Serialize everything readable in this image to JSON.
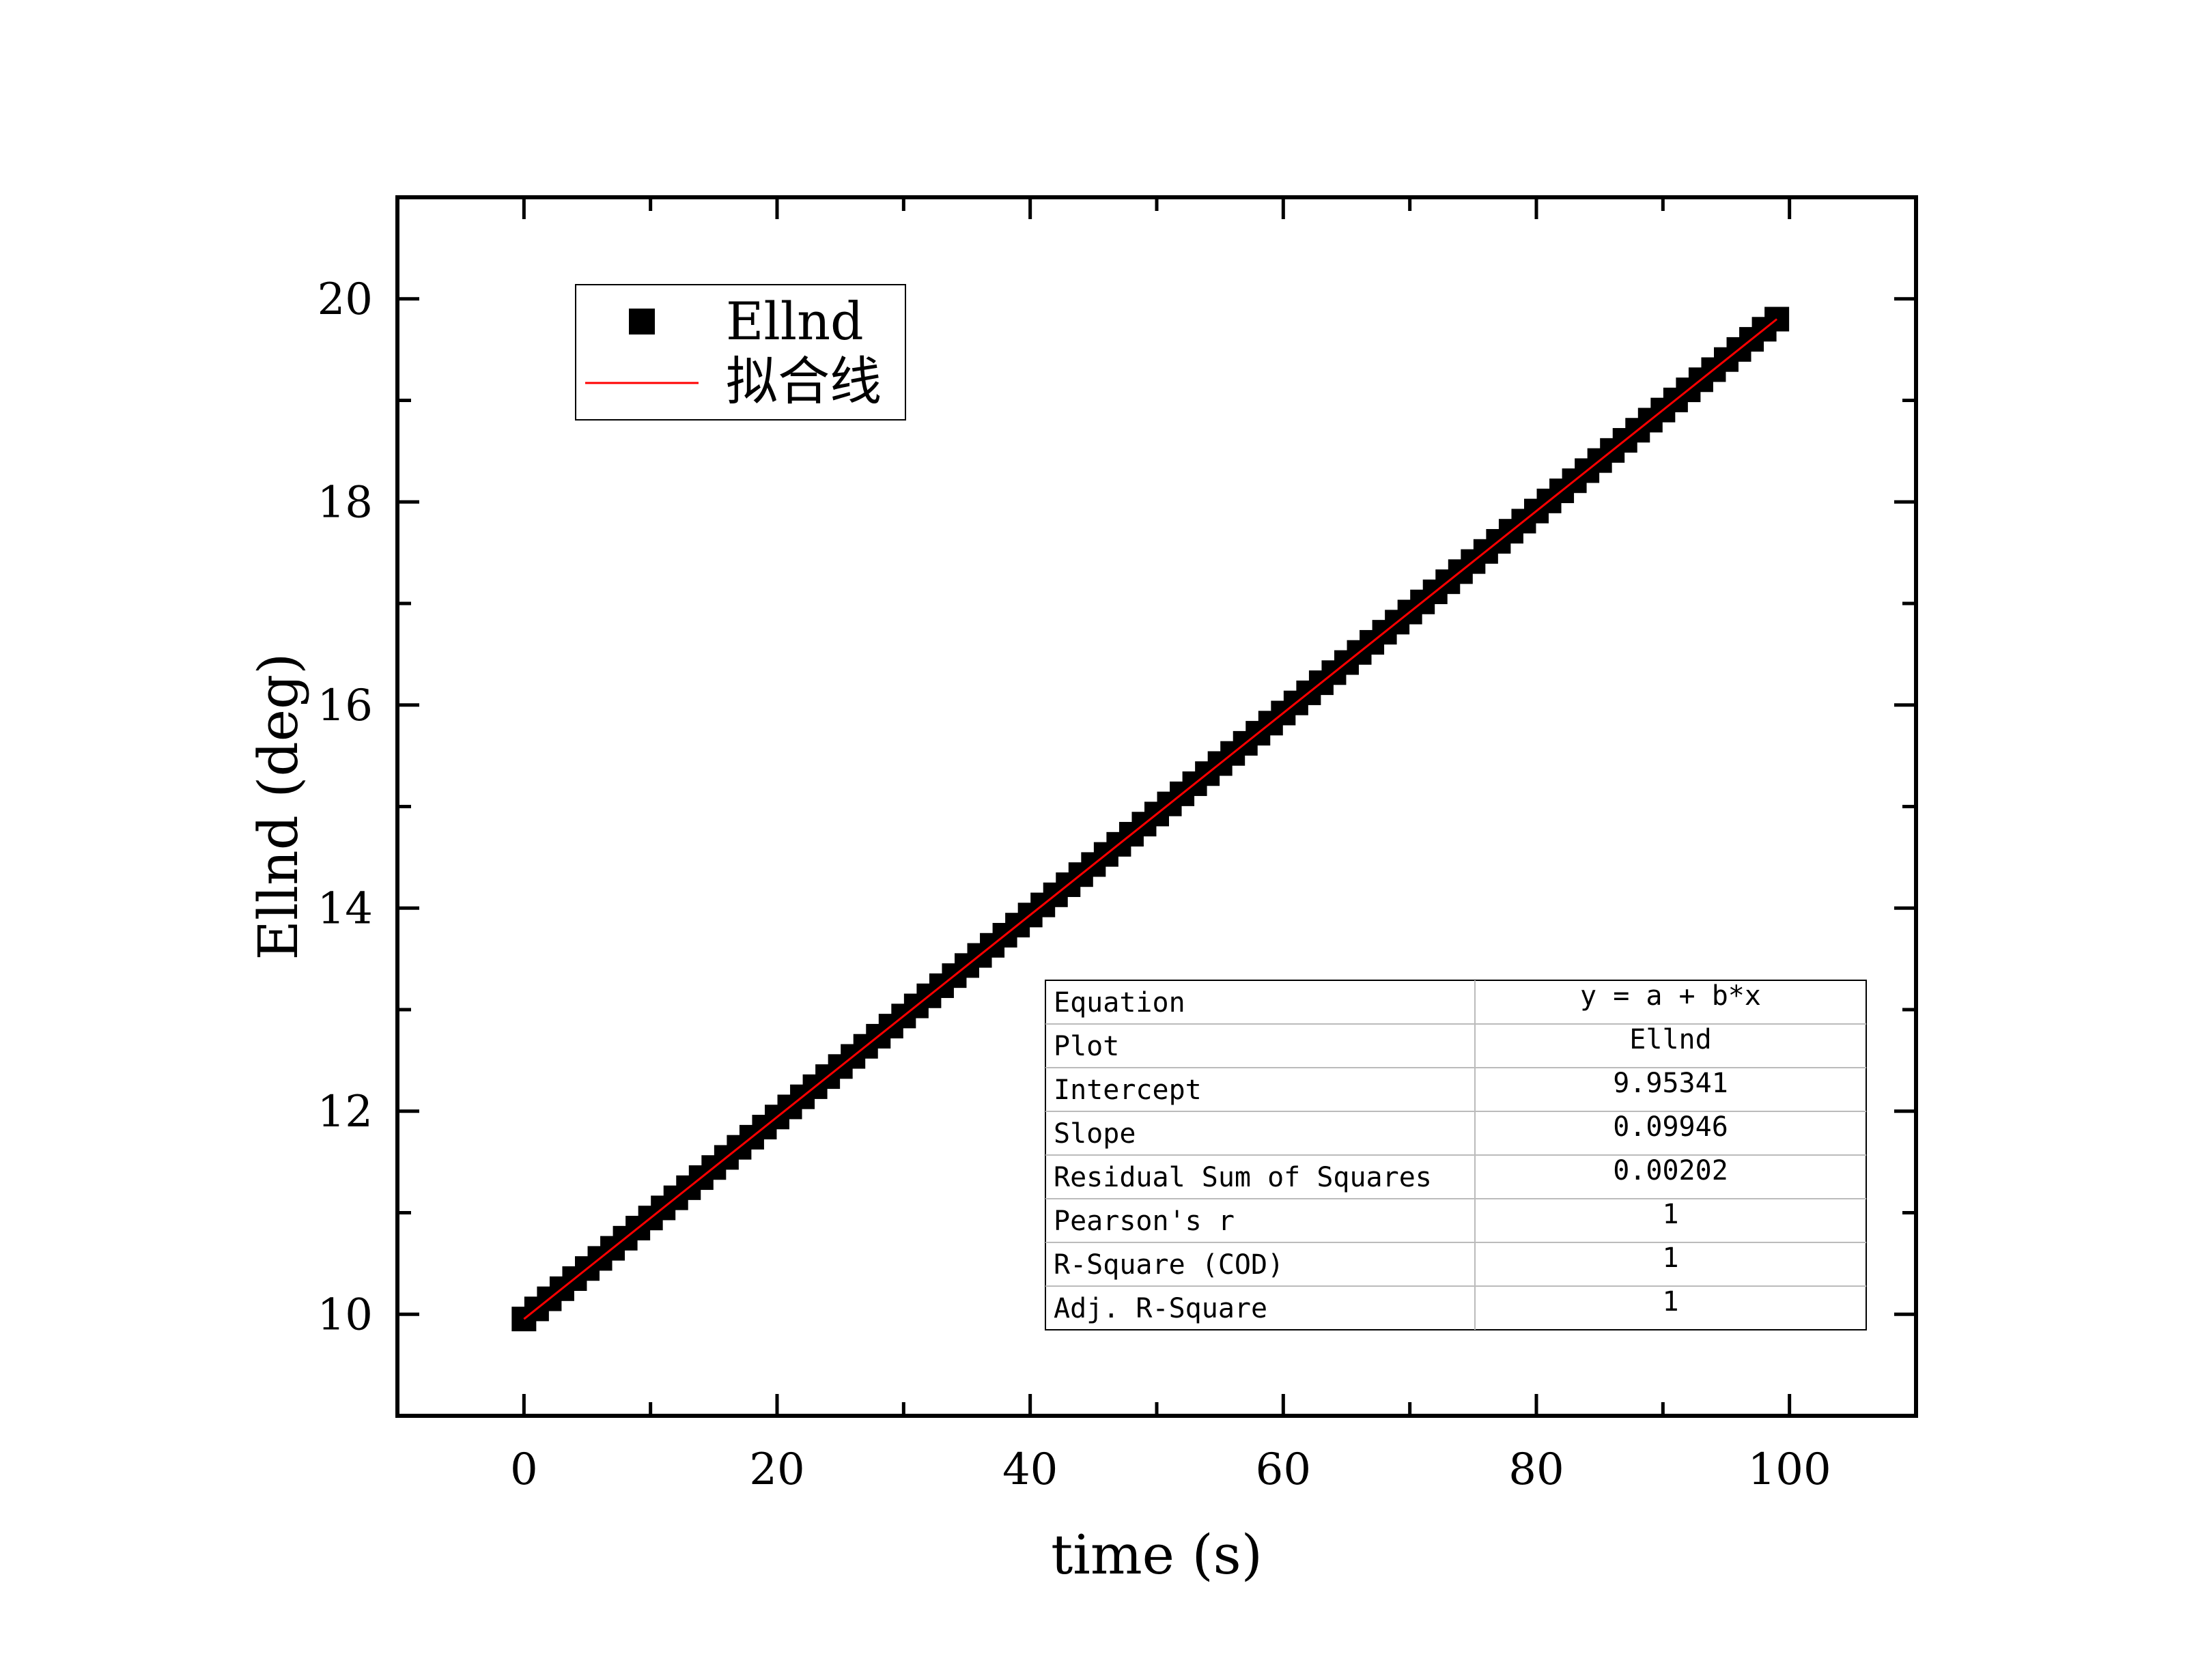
{
  "chart_data": {
    "type": "scatter",
    "xlabel": "time (s)",
    "ylabel": "Ellnd (deg)",
    "xlim": [
      -10,
      110
    ],
    "ylim": [
      9,
      21
    ],
    "xticks": [
      "0",
      "20",
      "40",
      "60",
      "80",
      "100"
    ],
    "yticks": [
      "10",
      "12",
      "14",
      "16",
      "18",
      "20"
    ],
    "grid": false,
    "legend_position": "top-left",
    "series": [
      {
        "name": "Ellnd",
        "marker": "square",
        "color": "#000000",
        "x_start": 0,
        "x_end": 99,
        "x_step": 1,
        "intercept": 9.95341,
        "slope": 0.09946
      },
      {
        "name": "拟合线",
        "kind": "line",
        "color": "#ff0000",
        "intercept": 9.95341,
        "slope": 0.09946,
        "x_range": [
          0,
          99
        ]
      }
    ],
    "fit_table": [
      {
        "label": "Equation",
        "value": "y = a + b*x"
      },
      {
        "label": "Plot",
        "value": "Ellnd"
      },
      {
        "label": "Intercept",
        "value": "9.95341"
      },
      {
        "label": "Slope",
        "value": "0.09946"
      },
      {
        "label": "Residual Sum of Squares",
        "value": "0.00202"
      },
      {
        "label": "Pearson's r",
        "value": "1"
      },
      {
        "label": "R-Square (COD)",
        "value": "1"
      },
      {
        "label": "Adj. R-Square",
        "value": "1"
      }
    ]
  }
}
